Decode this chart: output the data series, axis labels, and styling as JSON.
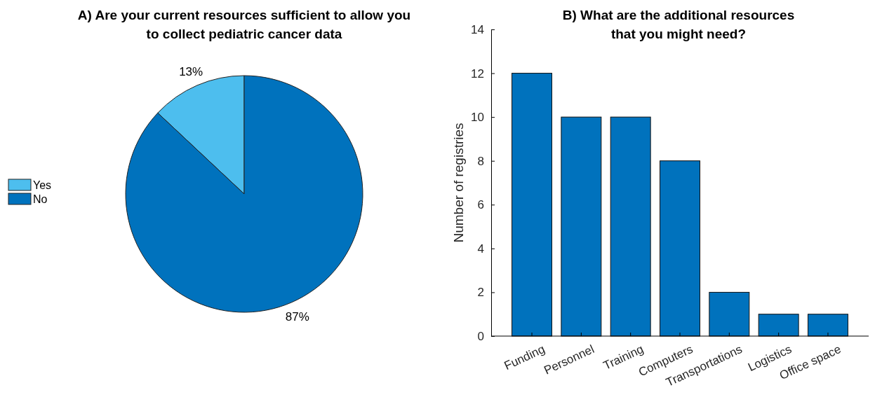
{
  "chart_data": [
    {
      "type": "pie",
      "title": "A) Are your current resources sufficient to allow you\nto collect pediatric cancer data",
      "categories": [
        "Yes",
        "No"
      ],
      "values": [
        13,
        87
      ],
      "colors": [
        "#4dbeee",
        "#0072bd"
      ],
      "value_labels": [
        "13%",
        "87%"
      ],
      "legend": "left"
    },
    {
      "type": "bar",
      "title": "B) What are the additional resources\nthat you might need?",
      "ylabel": "Number of registries",
      "categories": [
        "Funding",
        "Personnel",
        "Training",
        "Computers",
        "Transportations",
        "Logistics",
        "Office space"
      ],
      "values": [
        12,
        10,
        10,
        8,
        2,
        1,
        1
      ],
      "color": "#0072bd",
      "ylim": [
        0,
        14
      ],
      "yticks": [
        0,
        2,
        4,
        6,
        8,
        10,
        12,
        14
      ],
      "grid": false
    }
  ]
}
